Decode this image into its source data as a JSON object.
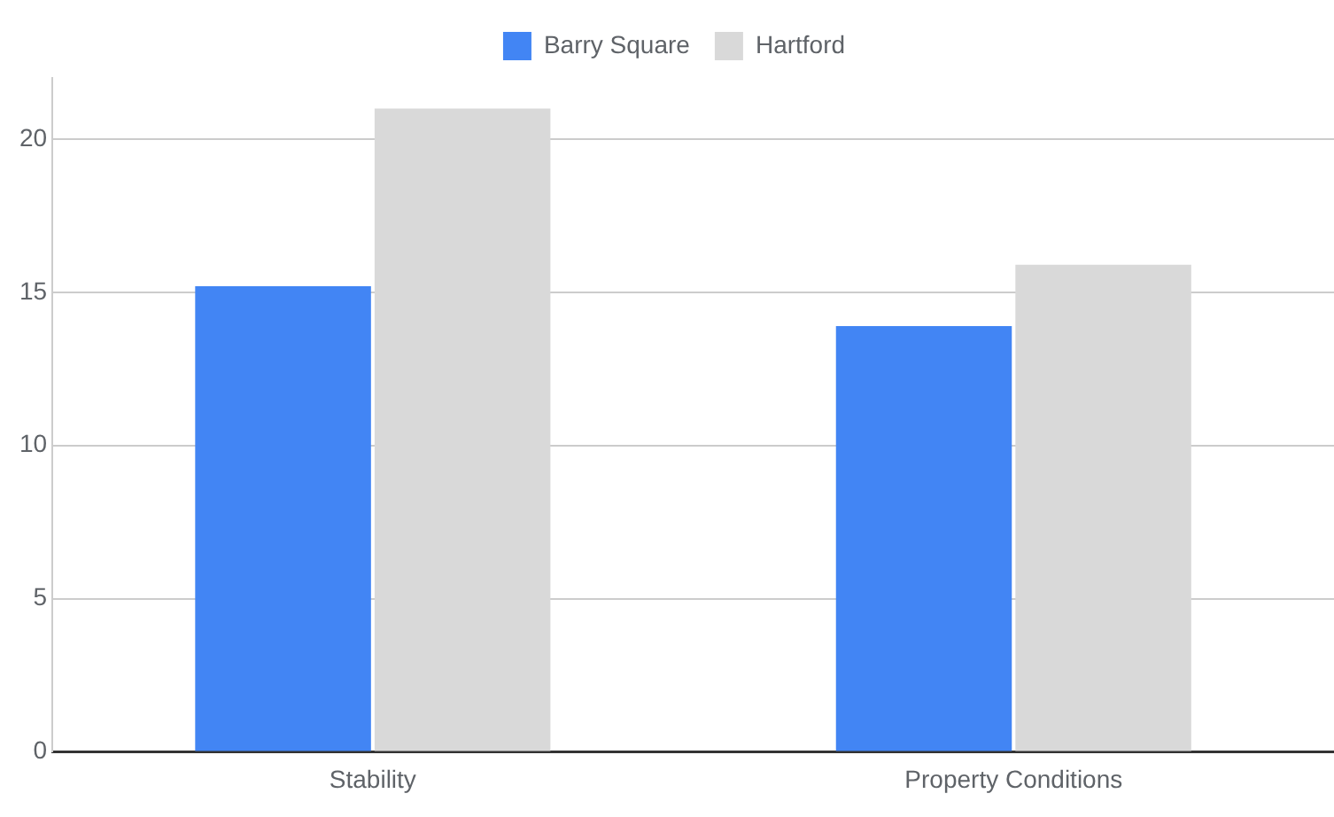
{
  "chart_data": {
    "type": "bar",
    "categories": [
      "Stability",
      "Property Conditions"
    ],
    "series": [
      {
        "name": "Barry Square",
        "color": "#4285f4",
        "values": [
          15.2,
          13.9
        ]
      },
      {
        "name": "Hartford",
        "color": "#d9d9d9",
        "values": [
          21.0,
          15.9
        ]
      }
    ],
    "ylim": [
      0,
      22
    ],
    "yticks": [
      0,
      5,
      10,
      15,
      20
    ],
    "grid": "y",
    "legend": "top"
  }
}
